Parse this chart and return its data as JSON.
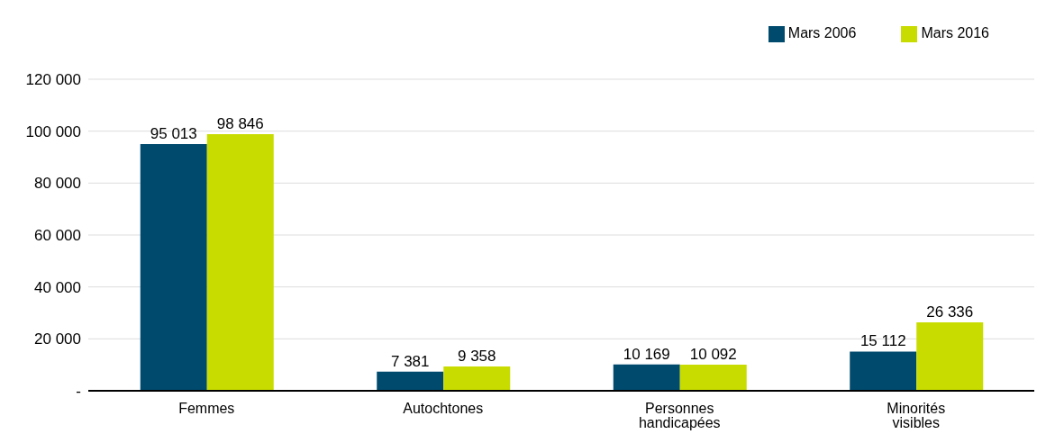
{
  "chart_data": {
    "type": "bar",
    "categories": [
      "Femmes",
      "Autochtones",
      "Personnes handicapées",
      "Minorités visibles"
    ],
    "series": [
      {
        "name": "Mars 2006",
        "color": "#004a6e",
        "values": [
          95013,
          7381,
          10169,
          15112
        ],
        "value_labels": [
          "95 013",
          "7 381",
          "10 169",
          "15 112"
        ]
      },
      {
        "name": "Mars 2016",
        "color": "#c8dc00",
        "values": [
          98846,
          9358,
          10092,
          26336
        ],
        "value_labels": [
          "98 846",
          "9 358",
          "10 092",
          "26 336"
        ]
      }
    ],
    "ylim": [
      0,
      120000
    ],
    "yticks": [
      {
        "value": 0,
        "label": "-"
      },
      {
        "value": 20000,
        "label": "20 000"
      },
      {
        "value": 40000,
        "label": "40 000"
      },
      {
        "value": 60000,
        "label": "60 000"
      },
      {
        "value": 80000,
        "label": "80 000"
      },
      {
        "value": 100000,
        "label": "100 000"
      },
      {
        "value": 120000,
        "label": "120 000"
      }
    ],
    "grid": "y",
    "legend": "top right"
  }
}
